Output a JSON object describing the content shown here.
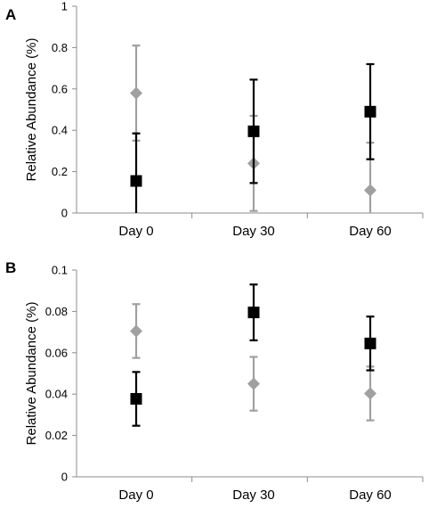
{
  "chart_data": [
    {
      "type": "scatter",
      "panel_label": "A",
      "ylabel": "Relative Abundance (%)",
      "xlabel": "",
      "categories": [
        "Day 0",
        "Day 30",
        "Day 60"
      ],
      "yticks": [
        "0",
        "0.2",
        "0.4",
        "0.6",
        "0.8",
        "1"
      ],
      "ylim": [
        0,
        1
      ],
      "grid": false,
      "legend": "none",
      "series": [
        {
          "marker": "diamond",
          "color": "#a0a0a0",
          "values": [
            0.58,
            0.24,
            0.11
          ],
          "error": [
            0.23,
            0.23,
            0.23
          ]
        },
        {
          "marker": "square",
          "color": "#000000",
          "values": [
            0.155,
            0.395,
            0.49
          ],
          "error": [
            0.23,
            0.25,
            0.23
          ]
        }
      ]
    },
    {
      "type": "scatter",
      "panel_label": "B",
      "ylabel": "Relative Abundance (%)",
      "xlabel": "",
      "categories": [
        "Day 0",
        "Day 30",
        "Day 60"
      ],
      "yticks": [
        "0",
        "0.02",
        "0.04",
        "0.06",
        "0.08",
        "0.1"
      ],
      "ylim": [
        0,
        0.1
      ],
      "grid": false,
      "legend": "none",
      "series": [
        {
          "marker": "diamond",
          "color": "#a0a0a0",
          "values": [
            0.0705,
            0.045,
            0.0403
          ],
          "error": [
            0.013,
            0.013,
            0.013
          ]
        },
        {
          "marker": "square",
          "color": "#000000",
          "values": [
            0.0377,
            0.0795,
            0.0645
          ],
          "error": [
            0.013,
            0.0135,
            0.013
          ]
        }
      ]
    }
  ]
}
